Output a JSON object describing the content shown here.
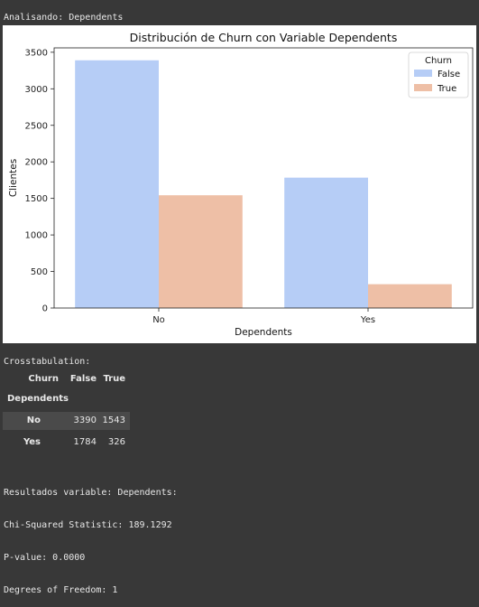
{
  "analysis_line": "Analisando: Dependents",
  "chart_data": {
    "type": "bar",
    "title": "Distribución de Churn con Variable Dependents",
    "xlabel": "Dependents",
    "ylabel": "Clientes",
    "categories": [
      "No",
      "Yes"
    ],
    "series": [
      {
        "name": "False",
        "values": [
          3390,
          1784
        ],
        "color": "#b6cdf6"
      },
      {
        "name": "True",
        "values": [
          1543,
          326
        ],
        "color": "#eebfa6"
      }
    ],
    "ylim": [
      0,
      3560
    ],
    "yticks": [
      0,
      500,
      1000,
      1500,
      2000,
      2500,
      3000,
      3500
    ],
    "legend": {
      "title": "Churn",
      "position": "top-right"
    },
    "grid": false
  },
  "crosstab": {
    "caption": "Crosstabulation:",
    "column_axis_label": "Churn",
    "columns": [
      "False",
      "True"
    ],
    "index_label": "Dependents",
    "rows": [
      {
        "label": "No",
        "values": [
          "3390",
          "1543"
        ]
      },
      {
        "label": "Yes",
        "values": [
          "1784",
          "326"
        ]
      }
    ]
  },
  "results": [
    "Resultados variable: Dependents:",
    "Chi-Squared Statistic: 189.1292",
    "P-value: 0.0000",
    "Degrees of Freedom: 1"
  ]
}
